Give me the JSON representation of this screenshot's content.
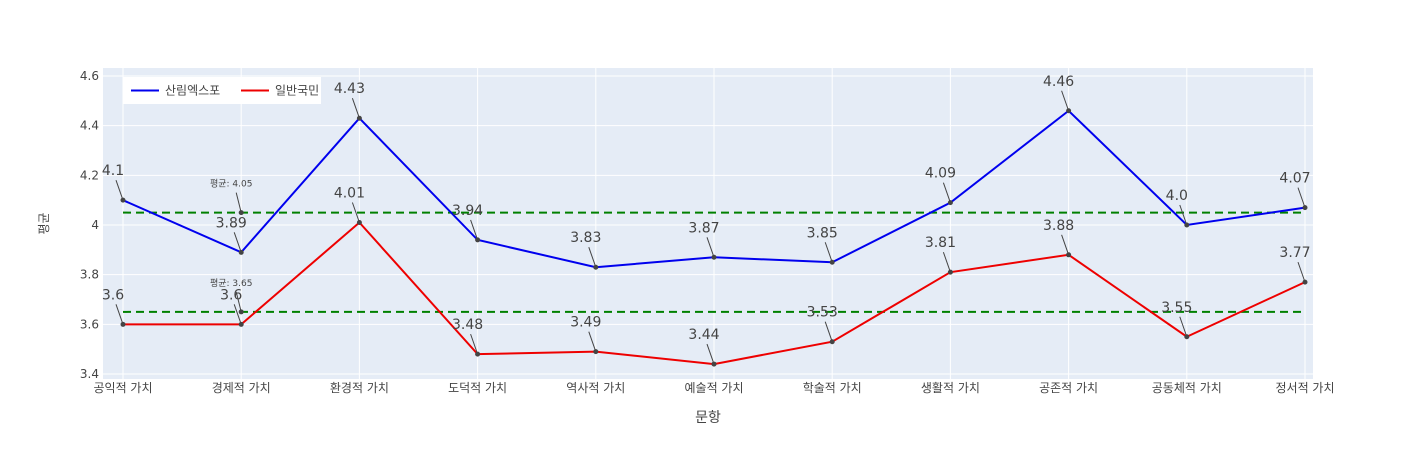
{
  "chart_data": {
    "type": "line",
    "title": "",
    "xlabel": "문항",
    "ylabel": "평균",
    "ylim": [
      3.4,
      4.6
    ],
    "yticks": [
      3.4,
      3.6,
      3.8,
      4,
      4.2,
      4.4,
      4.6
    ],
    "ytick_labels": [
      "3.4",
      "3.6",
      "3.8",
      "4",
      "4.2",
      "4.4",
      "4.6"
    ],
    "grid": true,
    "legend_position": "top-left",
    "categories": [
      "공익적 가치",
      "경제적 가치",
      "환경적 가치",
      "도덕적 가치",
      "역사적 가치",
      "예술적 가치",
      "학술적 가치",
      "생활적 가치",
      "공존적 가치",
      "공동체적 가치",
      "정서적 가치"
    ],
    "series": [
      {
        "name": "산림엑스포",
        "color": "#0000ee",
        "values": [
          4.1,
          3.89,
          4.43,
          3.94,
          3.83,
          3.87,
          3.85,
          4.09,
          4.46,
          4.0,
          4.07
        ],
        "labels": [
          "4.1",
          "3.89",
          "4.43",
          "3.94",
          "3.83",
          "3.87",
          "3.85",
          "4.09",
          "4.46",
          "4.0",
          "4.07"
        ]
      },
      {
        "name": "일반국민",
        "color": "#ee0000",
        "values": [
          3.6,
          3.6,
          4.01,
          3.48,
          3.49,
          3.44,
          3.53,
          3.81,
          3.88,
          3.55,
          3.77
        ],
        "labels": [
          "3.6",
          "3.6",
          "4.01",
          "3.48",
          "3.49",
          "3.44",
          "3.53",
          "3.81",
          "3.88",
          "3.55",
          "3.77"
        ]
      }
    ],
    "reference_lines": [
      {
        "value": 4.05,
        "label": "평균: 4.05",
        "color": "#008000",
        "style": "dashed"
      },
      {
        "value": 3.65,
        "label": "평균: 3.65",
        "color": "#008000",
        "style": "dashed"
      }
    ],
    "plot_background": "#e5ecf6",
    "grid_color": "#ffffff"
  }
}
